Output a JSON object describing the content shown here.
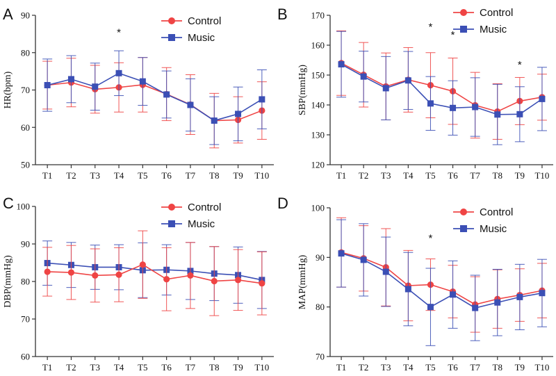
{
  "colors": {
    "control": "#ef4444",
    "music": "#3b4fb5",
    "axis": "#333333"
  },
  "chart_data": [
    {
      "type": "line",
      "panel_label": "A",
      "title": "",
      "xlabel": "",
      "ylabel": "HR(bpm)",
      "categories": [
        "T1",
        "T2",
        "T3",
        "T4",
        "T5",
        "T6",
        "T7",
        "T8",
        "T9",
        "T10"
      ],
      "ylim": [
        50,
        90
      ],
      "yticks": [
        50,
        60,
        70,
        80,
        90
      ],
      "legend_order": [
        "Control",
        "Music"
      ],
      "series": [
        {
          "name": "Control",
          "marker": "circle",
          "values": [
            71.3,
            72.0,
            70.2,
            70.7,
            71.4,
            68.9,
            66.1,
            61.8,
            62.0,
            64.5
          ],
          "errors": [
            6.4,
            6.5,
            6.4,
            6.6,
            7.3,
            7.1,
            8.0,
            7.3,
            6.2,
            7.7
          ]
        },
        {
          "name": "Music",
          "marker": "square",
          "values": [
            71.3,
            72.9,
            70.9,
            74.5,
            72.3,
            68.8,
            66.0,
            61.8,
            63.6,
            67.5
          ],
          "errors": [
            7.0,
            6.3,
            6.3,
            6.0,
            6.4,
            6.3,
            7.0,
            6.4,
            7.2,
            7.9
          ]
        }
      ],
      "annotations": [
        {
          "text": "*",
          "category": "T4",
          "y": 84.5
        }
      ]
    },
    {
      "type": "line",
      "panel_label": "B",
      "title": "",
      "xlabel": "",
      "ylabel": "SBP(mmHg)",
      "categories": [
        "T1",
        "T2",
        "T3",
        "T4",
        "T5",
        "T6",
        "T7",
        "T8",
        "T9",
        "T10"
      ],
      "ylim": [
        120,
        170
      ],
      "yticks": [
        120,
        130,
        140,
        150,
        160,
        170
      ],
      "legend_order": [
        "Control",
        "Music"
      ],
      "series": [
        {
          "name": "Control",
          "marker": "circle",
          "values": [
            154.0,
            150.1,
            146.2,
            148.4,
            146.6,
            144.6,
            139.9,
            137.8,
            141.3,
            142.6
          ],
          "errors": [
            10.8,
            10.8,
            11.2,
            10.8,
            10.9,
            11.1,
            11.0,
            9.3,
            7.9,
            7.7
          ]
        },
        {
          "name": "Music",
          "marker": "square",
          "values": [
            153.6,
            149.5,
            145.6,
            148.2,
            140.5,
            139.0,
            139.3,
            136.8,
            136.9,
            142.0
          ],
          "errors": [
            11.0,
            8.5,
            10.6,
            9.7,
            9.0,
            9.1,
            9.8,
            10.1,
            9.2,
            10.6
          ]
        }
      ],
      "annotations": [
        {
          "text": "*",
          "category": "T5",
          "y": 165.0
        },
        {
          "text": "*",
          "category": "T6",
          "y": 162.3
        },
        {
          "text": "*",
          "category": "T9",
          "y": 152.3
        }
      ]
    },
    {
      "type": "line",
      "panel_label": "C",
      "title": "",
      "xlabel": "",
      "ylabel": "DBP(mmHg)",
      "categories": [
        "T1",
        "T2",
        "T3",
        "T4",
        "T5",
        "T6",
        "T7",
        "T8",
        "T9",
        "T10"
      ],
      "ylim": [
        60,
        100
      ],
      "yticks": [
        60,
        70,
        80,
        90,
        100
      ],
      "legend_order": [
        "Control",
        "Music"
      ],
      "series": [
        {
          "name": "Control",
          "marker": "circle",
          "values": [
            82.6,
            82.4,
            81.6,
            81.8,
            84.5,
            80.6,
            81.6,
            80.1,
            80.4,
            79.5
          ],
          "errors": [
            6.5,
            7.2,
            7.1,
            7.2,
            9.0,
            8.4,
            8.8,
            9.2,
            8.1,
            8.4
          ]
        },
        {
          "name": "Music",
          "marker": "square",
          "values": [
            84.9,
            84.4,
            83.8,
            83.8,
            83.0,
            83.1,
            82.8,
            82.1,
            81.7,
            80.4
          ],
          "errors": [
            5.9,
            6.0,
            5.9,
            6.0,
            7.3,
            6.7,
            7.6,
            7.2,
            7.5,
            7.6
          ]
        }
      ],
      "annotations": []
    },
    {
      "type": "line",
      "panel_label": "D",
      "title": "",
      "xlabel": "",
      "ylabel": "MAP(mmHg)",
      "categories": [
        "T1",
        "T2",
        "T3",
        "T4",
        "T5",
        "T6",
        "T7",
        "T8",
        "T9",
        "T10"
      ],
      "ylim": [
        70,
        100
      ],
      "yticks": [
        70,
        80,
        90,
        100
      ],
      "legend_order": [
        "Control",
        "Music"
      ],
      "series": [
        {
          "name": "Control",
          "marker": "circle",
          "values": [
            91.0,
            89.8,
            88.0,
            84.3,
            84.5,
            83.1,
            80.5,
            81.6,
            82.4,
            83.3
          ],
          "errors": [
            7.0,
            6.6,
            7.8,
            7.1,
            5.2,
            5.3,
            5.6,
            5.9,
            5.3,
            5.5
          ]
        },
        {
          "name": "Music",
          "marker": "square",
          "values": [
            90.8,
            89.5,
            87.1,
            83.6,
            80.0,
            82.5,
            79.8,
            80.9,
            82.0,
            82.8
          ],
          "errors": [
            6.8,
            7.3,
            7.0,
            7.4,
            7.8,
            6.8,
            6.6,
            6.7,
            6.6,
            6.8
          ]
        }
      ],
      "annotations": [
        {
          "text": "*",
          "category": "T5",
          "y": 93.2
        }
      ]
    }
  ]
}
